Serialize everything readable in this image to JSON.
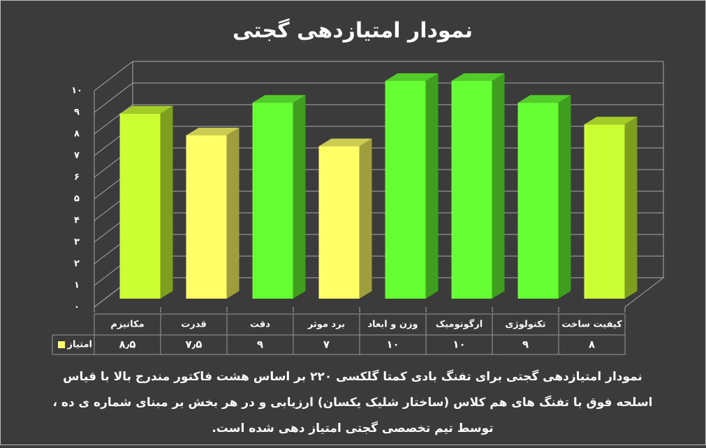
{
  "chart_data": {
    "type": "bar3d",
    "title": "نمودار امتیازدهی گجتی",
    "categories": [
      "مکانیزم",
      "قدرت",
      "دقت",
      "برد موثر",
      "وزن و ابعاد",
      "ارگونومیک",
      "تکنولوژی",
      "کیفیت ساخت"
    ],
    "series": [
      {
        "name": "امتیاز",
        "color": "#ffff66",
        "values": [
          8.5,
          7.5,
          9,
          7,
          10,
          10,
          9,
          8
        ],
        "value_labels": [
          "۸٫۵",
          "۷٫۵",
          "۹",
          "۷",
          "۱۰",
          "۱۰",
          "۹",
          "۸"
        ]
      }
    ],
    "colors": [
      "#ccff33",
      "#ffff66",
      "#66ff33",
      "#ffff66",
      "#66ff33",
      "#66ff33",
      "#66ff33",
      "#ccff33"
    ],
    "ylim": [
      0,
      10
    ],
    "yticks": [
      {
        "value": 0,
        "label": "۰"
      },
      {
        "value": 1,
        "label": "۱"
      },
      {
        "value": 2,
        "label": "۲"
      },
      {
        "value": 3,
        "label": "۳"
      },
      {
        "value": 4,
        "label": "۴"
      },
      {
        "value": 5,
        "label": "۵"
      },
      {
        "value": 6,
        "label": "۶"
      },
      {
        "value": 7,
        "label": "۷"
      },
      {
        "value": 8,
        "label": "۸"
      },
      {
        "value": 9,
        "label": "۹"
      },
      {
        "value": 10,
        "label": "۱۰"
      }
    ],
    "grid": true,
    "caption": [
      "نمودار امتیازدهی گجتی برای تفنگ بادی کمتا گلکسی ۲۲۰ بر اساس هشت فاکتور مندرج بالا با قیاس",
      "اسلحه فوق با تفنگ های هم کلاس (ساختار شلیک یکسان) ارزیابی و در هر بخش بر مبنای شماره ی ده ،",
      "توسط تیم تخصصی گجتی امتیاز دهی شده است."
    ]
  }
}
